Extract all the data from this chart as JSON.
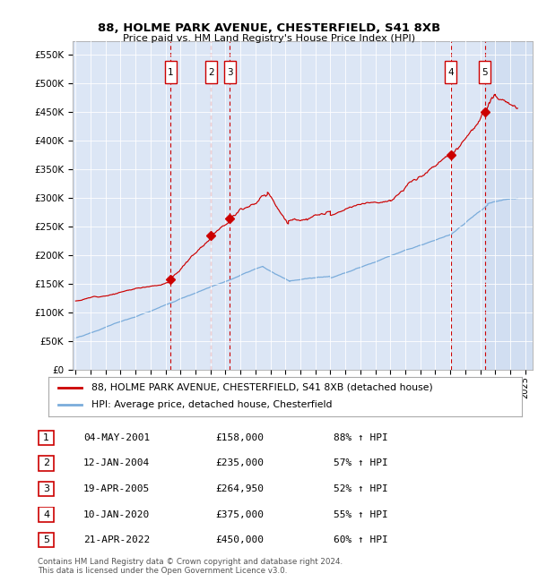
{
  "title1": "88, HOLME PARK AVENUE, CHESTERFIELD, S41 8XB",
  "title2": "Price paid vs. HM Land Registry's House Price Index (HPI)",
  "legend_label1": "88, HOLME PARK AVENUE, CHESTERFIELD, S41 8XB (detached house)",
  "legend_label2": "HPI: Average price, detached house, Chesterfield",
  "transactions": [
    {
      "num": 1,
      "date": "04-MAY-2001",
      "price": 158000,
      "pct": "88%",
      "year": 2001.35
    },
    {
      "num": 2,
      "date": "12-JAN-2004",
      "price": 235000,
      "pct": "57%",
      "year": 2004.04
    },
    {
      "num": 3,
      "date": "19-APR-2005",
      "price": 264950,
      "pct": "52%",
      "year": 2005.3
    },
    {
      "num": 4,
      "date": "10-JAN-2020",
      "price": 375000,
      "pct": "55%",
      "year": 2020.04
    },
    {
      "num": 5,
      "date": "21-APR-2022",
      "price": 450000,
      "pct": "60%",
      "year": 2022.3
    }
  ],
  "table_rows": [
    {
      "num": 1,
      "date": "04-MAY-2001",
      "price": "£158,000",
      "hpi": "88% ↑ HPI"
    },
    {
      "num": 2,
      "date": "12-JAN-2004",
      "price": "£235,000",
      "hpi": "57% ↑ HPI"
    },
    {
      "num": 3,
      "date": "19-APR-2005",
      "price": "£264,950",
      "hpi": "52% ↑ HPI"
    },
    {
      "num": 4,
      "date": "10-JAN-2020",
      "price": "£375,000",
      "hpi": "55% ↑ HPI"
    },
    {
      "num": 5,
      "date": "21-APR-2022",
      "price": "£450,000",
      "hpi": "60% ↑ HPI"
    }
  ],
  "footnote1": "Contains HM Land Registry data © Crown copyright and database right 2024.",
  "footnote2": "This data is licensed under the Open Government Licence v3.0.",
  "ylim_max": 575000,
  "xlim_start": 1994.8,
  "xlim_end": 2025.5,
  "plot_bg": "#dce6f5",
  "red_color": "#cc0000",
  "blue_color": "#7aacdb",
  "shade_color": "#c8d8ef"
}
